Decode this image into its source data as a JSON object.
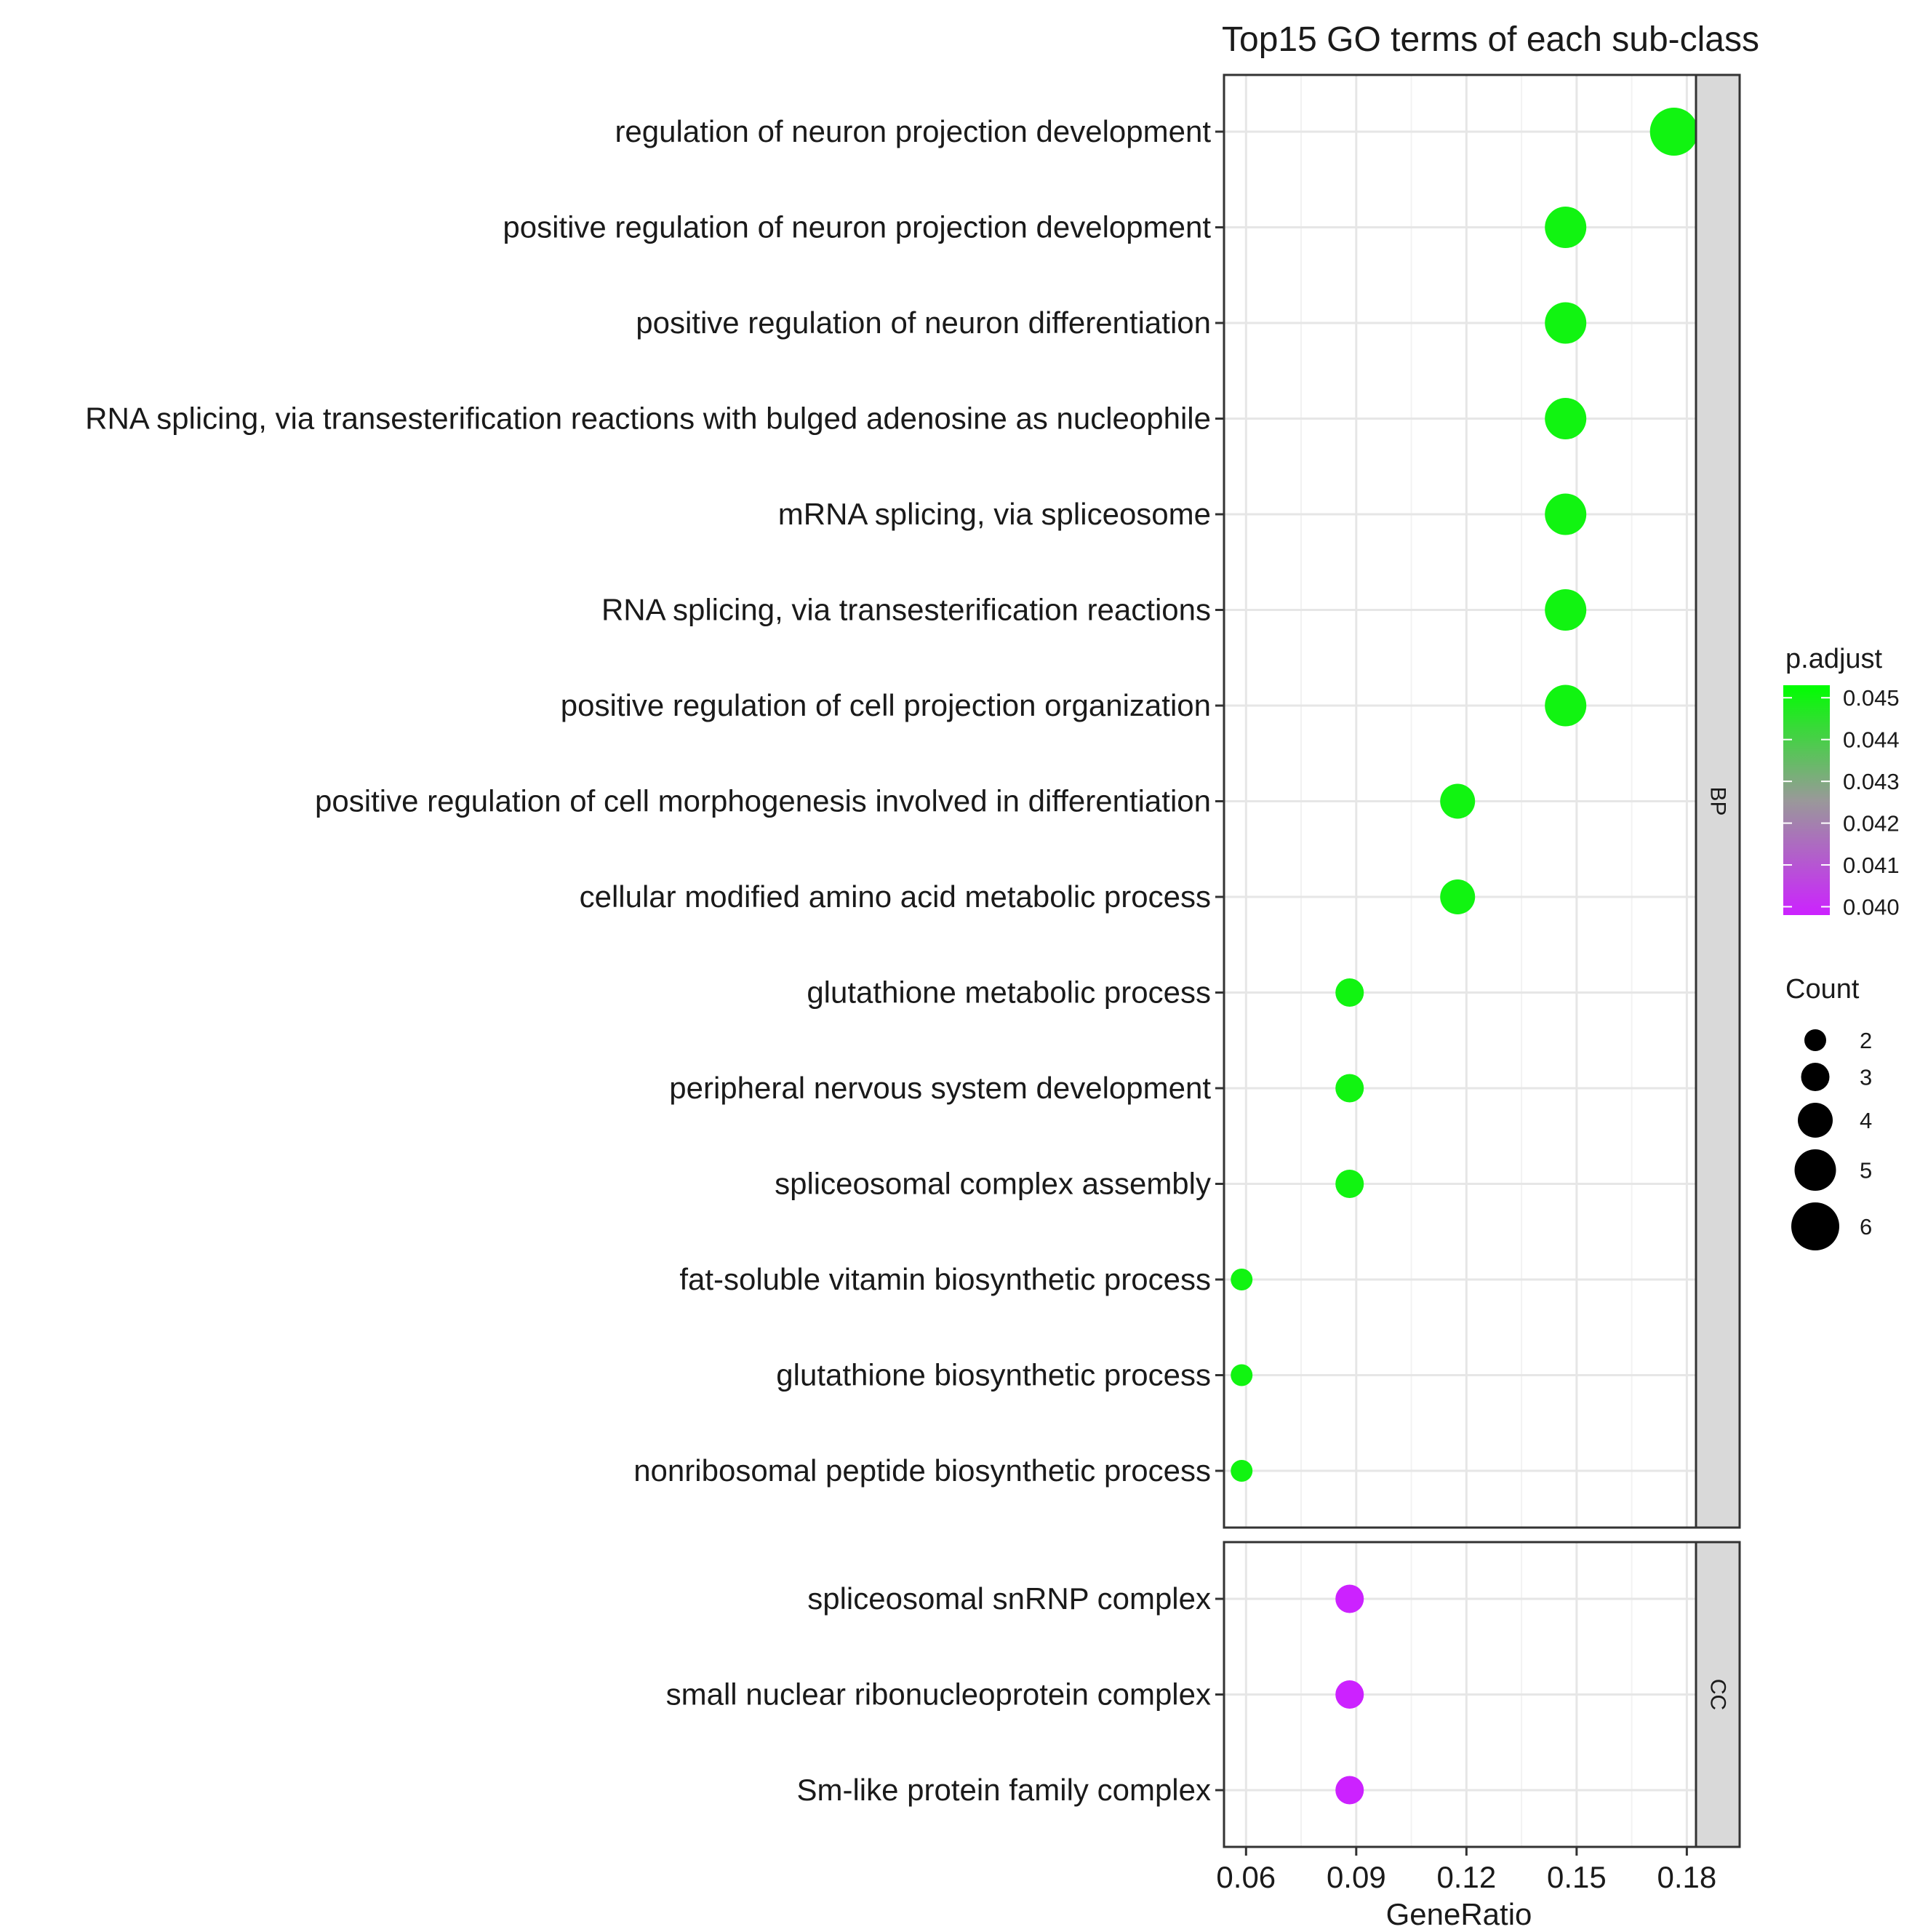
{
  "chart_data": {
    "type": "scatter",
    "title": "Top15 GO terms of each sub-class",
    "xlabel": "GeneRatio",
    "ylabel": "",
    "xlim": [
      0.054,
      0.1825
    ],
    "xticks": [
      "0.06",
      "0.09",
      "0.12",
      "0.15",
      "0.18"
    ],
    "xtick_values": [
      0.06,
      0.09,
      0.12,
      0.15,
      0.18
    ],
    "grid": true,
    "facets": [
      {
        "name": "BP",
        "terms": [
          {
            "label": "regulation of neuron projection development",
            "gene_ratio": 0.1765,
            "count": 6,
            "p_adjust": 0.045
          },
          {
            "label": "positive regulation of neuron projection development",
            "gene_ratio": 0.147,
            "count": 5,
            "p_adjust": 0.045
          },
          {
            "label": "positive regulation of neuron differentiation",
            "gene_ratio": 0.147,
            "count": 5,
            "p_adjust": 0.045
          },
          {
            "label": "RNA splicing, via transesterification reactions with bulged adenosine as nucleophile",
            "gene_ratio": 0.147,
            "count": 5,
            "p_adjust": 0.045
          },
          {
            "label": "mRNA splicing, via spliceosome",
            "gene_ratio": 0.147,
            "count": 5,
            "p_adjust": 0.045
          },
          {
            "label": "RNA splicing, via transesterification reactions",
            "gene_ratio": 0.147,
            "count": 5,
            "p_adjust": 0.045
          },
          {
            "label": "positive regulation of cell projection organization",
            "gene_ratio": 0.147,
            "count": 5,
            "p_adjust": 0.045
          },
          {
            "label": "positive regulation of cell morphogenesis involved in differentiation",
            "gene_ratio": 0.1176,
            "count": 4,
            "p_adjust": 0.045
          },
          {
            "label": "cellular modified amino acid metabolic process",
            "gene_ratio": 0.1176,
            "count": 4,
            "p_adjust": 0.045
          },
          {
            "label": "glutathione metabolic process",
            "gene_ratio": 0.0882,
            "count": 3,
            "p_adjust": 0.045
          },
          {
            "label": "peripheral nervous system development",
            "gene_ratio": 0.0882,
            "count": 3,
            "p_adjust": 0.045
          },
          {
            "label": "spliceosomal complex assembly",
            "gene_ratio": 0.0882,
            "count": 3,
            "p_adjust": 0.045
          },
          {
            "label": "fat-soluble vitamin biosynthetic process",
            "gene_ratio": 0.0588,
            "count": 2,
            "p_adjust": 0.045
          },
          {
            "label": "glutathione biosynthetic process",
            "gene_ratio": 0.0588,
            "count": 2,
            "p_adjust": 0.045
          },
          {
            "label": "nonribosomal peptide biosynthetic process",
            "gene_ratio": 0.0588,
            "count": 2,
            "p_adjust": 0.045
          }
        ]
      },
      {
        "name": "CC",
        "terms": [
          {
            "label": "spliceosomal snRNP complex",
            "gene_ratio": 0.0882,
            "count": 3,
            "p_adjust": 0.0398
          },
          {
            "label": "small nuclear ribonucleoprotein complex",
            "gene_ratio": 0.0882,
            "count": 3,
            "p_adjust": 0.0398
          },
          {
            "label": "Sm-like protein family complex",
            "gene_ratio": 0.0882,
            "count": 3,
            "p_adjust": 0.0398
          }
        ]
      }
    ],
    "color_legend": {
      "title": "p.adjust",
      "ticks": [
        "0.045",
        "0.044",
        "0.043",
        "0.042",
        "0.041",
        "0.040"
      ],
      "tick_values": [
        0.045,
        0.044,
        0.043,
        0.042,
        0.041,
        0.04
      ],
      "range": [
        0.0398,
        0.0453
      ],
      "high_color": "#00ff00",
      "mid_color": "#999999",
      "low_color": "#cc22ff"
    },
    "size_legend": {
      "title": "Count",
      "values": [
        2,
        3,
        4,
        5,
        6
      ],
      "labels": [
        "2",
        "3",
        "4",
        "5",
        "6"
      ]
    },
    "colors": {
      "panel_border": "#333333",
      "grid_major": "#e6e6e6",
      "grid_minor": "#f2f2f2",
      "strip_fill": "#d9d9d9"
    }
  }
}
